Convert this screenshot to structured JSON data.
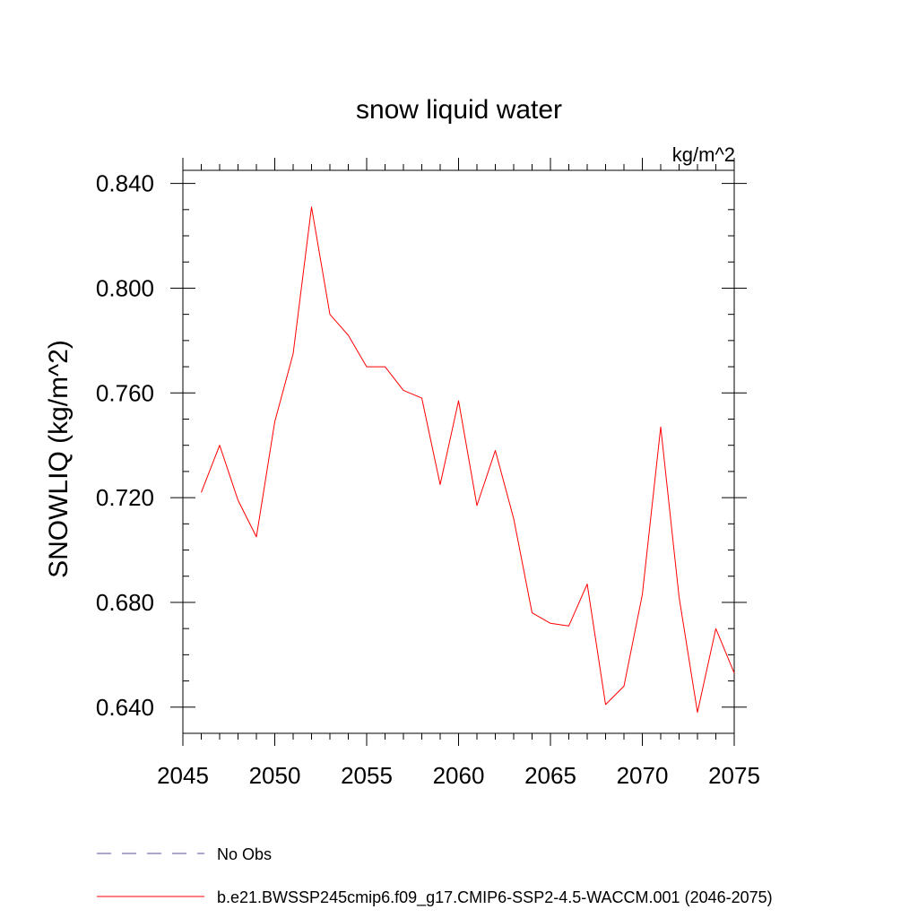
{
  "chart_data": {
    "type": "line",
    "title": "snow liquid water",
    "units_label": "kg/m^2",
    "ylabel": "SNOWLIQ  (kg/m^2)",
    "xlabel": "",
    "xlim": [
      2045,
      2075
    ],
    "ylim": [
      0.63,
      0.845
    ],
    "x_ticks": [
      2045,
      2050,
      2055,
      2060,
      2065,
      2070,
      2075
    ],
    "x_tick_labels": [
      "2045",
      "2050",
      "2055",
      "2060",
      "2065",
      "2070",
      "2075"
    ],
    "y_ticks": [
      0.64,
      0.68,
      0.72,
      0.76,
      0.8,
      0.84
    ],
    "y_tick_labels": [
      "0.640",
      "0.680",
      "0.720",
      "0.760",
      "0.800",
      "0.840"
    ],
    "grid": false,
    "legend_position": "bottom",
    "series": [
      {
        "name": "b.e21.BWSSP245cmip6.f09_g17.CMIP6-SSP2-4.5-WACCM.001 (2046-2075)",
        "color": "#ff0000",
        "style": "solid",
        "x": [
          2046,
          2047,
          2048,
          2049,
          2050,
          2051,
          2052,
          2053,
          2054,
          2055,
          2056,
          2057,
          2058,
          2059,
          2060,
          2061,
          2062,
          2063,
          2064,
          2065,
          2066,
          2067,
          2068,
          2069,
          2070,
          2071,
          2072,
          2073,
          2074,
          2075
        ],
        "values": [
          0.722,
          0.74,
          0.719,
          0.705,
          0.749,
          0.775,
          0.831,
          0.79,
          0.782,
          0.77,
          0.77,
          0.761,
          0.758,
          0.725,
          0.757,
          0.717,
          0.738,
          0.712,
          0.676,
          0.672,
          0.671,
          0.687,
          0.641,
          0.648,
          0.683,
          0.747,
          0.682,
          0.638,
          0.67,
          0.653
        ]
      },
      {
        "name": "No Obs",
        "color": "#5a4fa0",
        "style": "dashed",
        "x": [],
        "values": []
      }
    ]
  }
}
